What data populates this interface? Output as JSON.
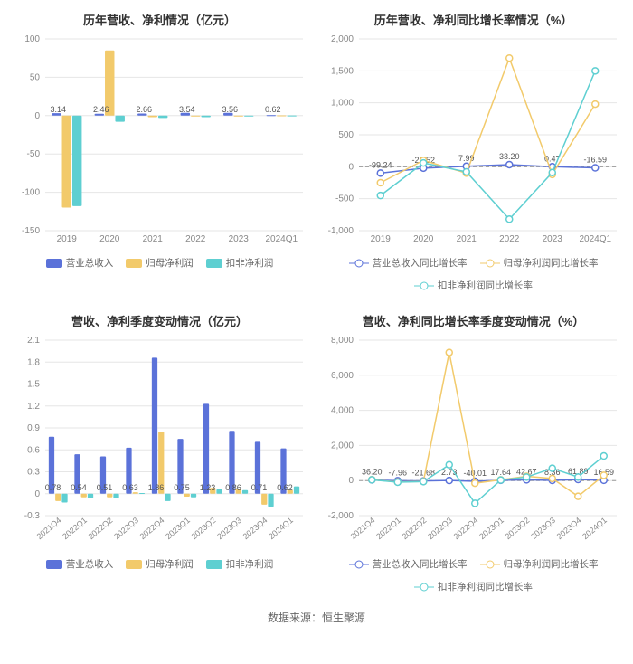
{
  "colors": {
    "blue": "#5b72d9",
    "yellow": "#f2ca6b",
    "cyan": "#5ecfd1",
    "grid": "#e6e6e6",
    "axis_text": "#888888",
    "title_text": "#333333",
    "value_text": "#555555",
    "bg": "#ffffff"
  },
  "source_label": "数据来源：恒生聚源",
  "panels": {
    "tl": {
      "title": "历年营收、净利情况（亿元）",
      "type": "bar",
      "categories": [
        "2019",
        "2020",
        "2021",
        "2022",
        "2023",
        "2024Q1"
      ],
      "ylim": [
        -150,
        100
      ],
      "ytick_step": 50,
      "bar_width": 0.22,
      "title_fontsize": 13,
      "label_fontsize": 10,
      "series": [
        {
          "name": "营业总收入",
          "color_key": "blue",
          "values": [
            3.14,
            2.46,
            2.66,
            3.54,
            3.56,
            0.62
          ],
          "label_values": [
            "3.14",
            "2.46",
            "2.66",
            "3.54",
            "3.56",
            "0.62"
          ]
        },
        {
          "name": "归母净利润",
          "color_key": "yellow",
          "values": [
            -120,
            85,
            -2,
            -1,
            -1,
            0.3
          ],
          "label_values": [
            null,
            null,
            null,
            null,
            null,
            null
          ]
        },
        {
          "name": "扣非净利润",
          "color_key": "cyan",
          "values": [
            -118,
            -8,
            -3,
            -2,
            -1,
            0.2
          ],
          "label_values": [
            null,
            null,
            null,
            null,
            null,
            null
          ]
        }
      ],
      "legend": [
        {
          "label": "营业总收入",
          "color_key": "blue",
          "style": "bar"
        },
        {
          "label": "归母净利润",
          "color_key": "yellow",
          "style": "bar"
        },
        {
          "label": "扣非净利润",
          "color_key": "cyan",
          "style": "bar"
        }
      ]
    },
    "tr": {
      "title": "历年营收、净利同比增长率情况（%）",
      "type": "line",
      "categories": [
        "2019",
        "2020",
        "2021",
        "2022",
        "2023",
        "2024Q1"
      ],
      "ylim": [
        -1000,
        2000
      ],
      "ytick_step": 500,
      "title_fontsize": 13,
      "label_fontsize": 10,
      "marker_radius": 3.5,
      "line_width": 1.5,
      "series": [
        {
          "name": "营业总收入同比增长率",
          "color_key": "blue",
          "values": [
            -99.24,
            -21.52,
            7.99,
            33.2,
            0.47,
            -16.59
          ],
          "label_values": [
            "-99.24",
            "-21.52",
            "7.99",
            "33.20",
            "0.47",
            "-16.59"
          ],
          "label_show": true
        },
        {
          "name": "归母净利润同比增长率",
          "color_key": "yellow",
          "values": [
            -250,
            100,
            -100,
            1700,
            -120,
            980
          ],
          "label_show": false
        },
        {
          "name": "扣非净利润同比增长率",
          "color_key": "cyan",
          "values": [
            -450,
            60,
            -80,
            -820,
            -90,
            1500
          ],
          "label_show": false
        }
      ],
      "legend": [
        {
          "label": "营业总收入同比增长率",
          "color_key": "blue",
          "style": "line"
        },
        {
          "label": "归母净利润同比增长率",
          "color_key": "yellow",
          "style": "line"
        },
        {
          "label": "扣非净利润同比增长率",
          "color_key": "cyan",
          "style": "line"
        }
      ]
    },
    "bl": {
      "title": "营收、净利季度变动情况（亿元）",
      "type": "bar",
      "categories": [
        "2021Q4",
        "2022Q1",
        "2022Q2",
        "2022Q3",
        "2022Q4",
        "2023Q1",
        "2023Q2",
        "2023Q3",
        "2023Q4",
        "2024Q1"
      ],
      "ylim": [
        -0.3,
        2.1
      ],
      "ytick_step": 0.3,
      "bar_width": 0.22,
      "rotate_xticks": true,
      "title_fontsize": 13,
      "label_fontsize": 10,
      "series": [
        {
          "name": "营业总收入",
          "color_key": "blue",
          "values": [
            0.78,
            0.54,
            0.51,
            0.63,
            1.86,
            0.75,
            1.23,
            0.86,
            0.71,
            0.62
          ],
          "label_values": [
            "0.78",
            "0.54",
            "0.51",
            "0.63",
            "1.86",
            "0.75",
            "1.23",
            "0.86",
            "0.71",
            "0.62"
          ]
        },
        {
          "name": "归母净利润",
          "color_key": "yellow",
          "values": [
            -0.1,
            -0.05,
            -0.05,
            0.02,
            0.85,
            -0.04,
            0.08,
            0.06,
            -0.15,
            0.05
          ],
          "label_values": [
            null,
            null,
            null,
            null,
            null,
            null,
            null,
            null,
            null,
            null
          ]
        },
        {
          "name": "扣非净利润",
          "color_key": "cyan",
          "values": [
            -0.12,
            -0.06,
            -0.06,
            0.01,
            -0.1,
            -0.05,
            0.06,
            0.05,
            -0.18,
            0.1
          ],
          "label_values": [
            null,
            null,
            null,
            null,
            null,
            null,
            null,
            null,
            null,
            null
          ]
        }
      ],
      "legend": [
        {
          "label": "营业总收入",
          "color_key": "blue",
          "style": "bar"
        },
        {
          "label": "归母净利润",
          "color_key": "yellow",
          "style": "bar"
        },
        {
          "label": "扣非净利润",
          "color_key": "cyan",
          "style": "bar"
        }
      ]
    },
    "br": {
      "title": "营收、净利同比增长率季度变动情况（%）",
      "type": "line",
      "categories": [
        "2021Q4",
        "2022Q1",
        "2022Q2",
        "2022Q3",
        "2022Q4",
        "2023Q1",
        "2023Q2",
        "2023Q3",
        "2023Q4",
        "2024Q1"
      ],
      "ylim": [
        -2000,
        8000
      ],
      "ytick_step": 2000,
      "rotate_xticks": true,
      "title_fontsize": 13,
      "label_fontsize": 10,
      "marker_radius": 3.5,
      "line_width": 1.5,
      "series": [
        {
          "name": "营业总收入同比增长率",
          "color_key": "blue",
          "values": [
            36.2,
            -7.96,
            -21.68,
            2.73,
            -40.01,
            17.64,
            42.67,
            8.36,
            61.89,
            16.59
          ],
          "label_values": [
            "36.20",
            "-7.96",
            "-21.68",
            "2.73",
            "-40.01",
            "17.64",
            "42.67",
            "8.36",
            "61.89",
            "16.59"
          ],
          "label_show": true
        },
        {
          "name": "归母净利润同比增长率",
          "color_key": "yellow",
          "values": [
            50,
            -80,
            -50,
            7300,
            -150,
            40,
            240,
            120,
            -900,
            300
          ],
          "label_show": false
        },
        {
          "name": "扣非净利润同比增长率",
          "color_key": "cyan",
          "values": [
            40,
            -90,
            -60,
            900,
            -1300,
            30,
            200,
            700,
            200,
            1400
          ],
          "label_show": false
        }
      ],
      "legend": [
        {
          "label": "营业总收入同比增长率",
          "color_key": "blue",
          "style": "line"
        },
        {
          "label": "归母净利润同比增长率",
          "color_key": "yellow",
          "style": "line"
        },
        {
          "label": "扣非净利润同比增长率",
          "color_key": "cyan",
          "style": "line"
        }
      ]
    }
  }
}
